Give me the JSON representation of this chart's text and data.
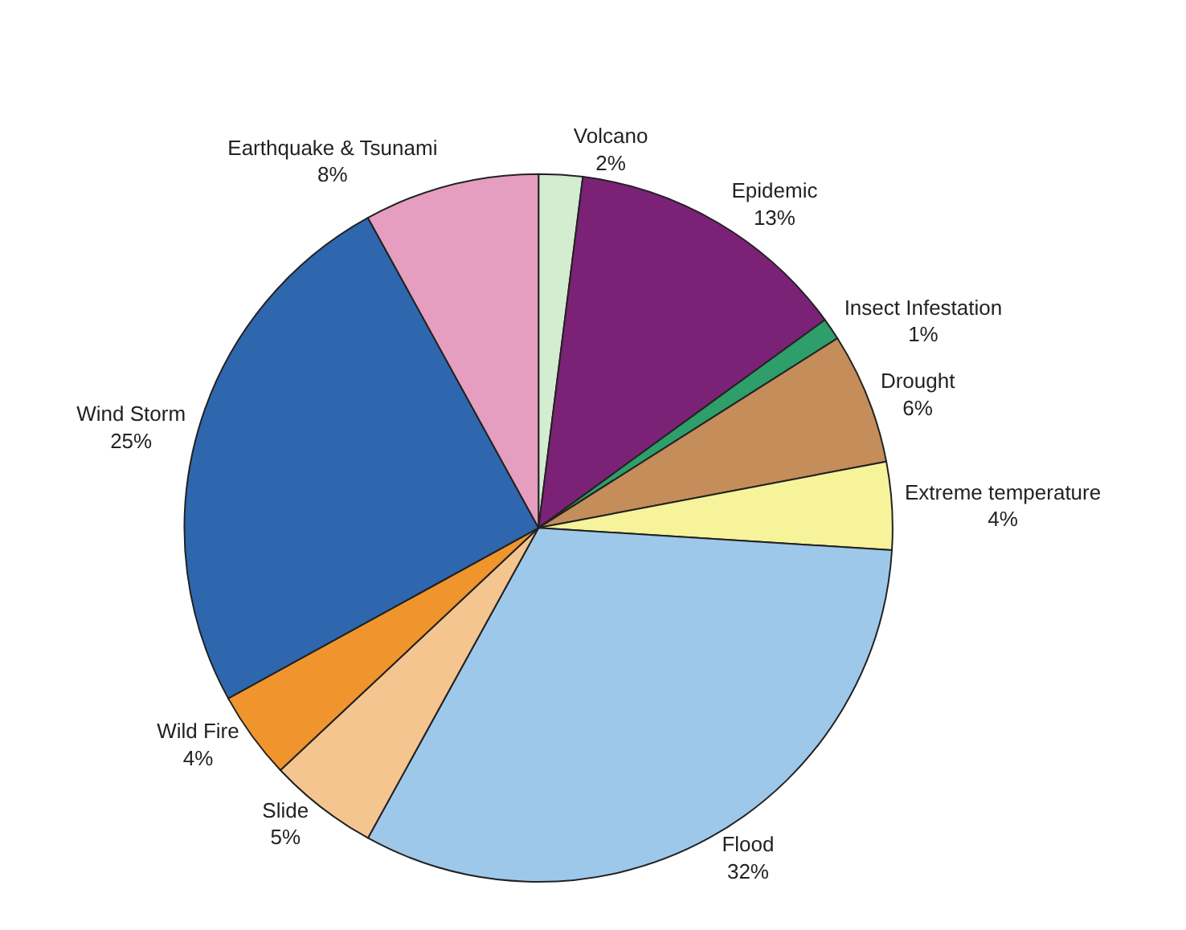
{
  "chart_data": {
    "type": "pie",
    "categories": [
      "Volcano",
      "Epidemic",
      "Insect Infestation",
      "Drought",
      "Extreme temperature",
      "Flood",
      "Slide",
      "Wild Fire",
      "Wind Storm",
      "Earthquake & Tsunami"
    ],
    "values": [
      2,
      13,
      1,
      6,
      4,
      32,
      5,
      4,
      25,
      8
    ],
    "value_labels": [
      "2%",
      "13%",
      "1%",
      "6%",
      "4%",
      "32%",
      "5%",
      "4%",
      "25%",
      "8%"
    ],
    "colors": [
      "#d4ecd0",
      "#7b2277",
      "#2e9e6a",
      "#c48d5a",
      "#f6f39a",
      "#9ec8ea",
      "#f5c58f",
      "#f0952e",
      "#2f67ae",
      "#e59ebf"
    ],
    "legend": false
  }
}
